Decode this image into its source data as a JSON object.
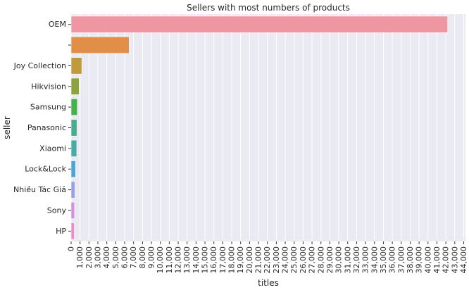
{
  "chart_data": {
    "type": "bar",
    "orientation": "horizontal",
    "title": "Sellers with most numbers of products",
    "xlabel": "titles",
    "ylabel": "seller",
    "categories": [
      "OEM",
      "",
      "Joy Collection",
      "Hikvision",
      "Samsung",
      "Panasonic",
      "Xiaomi",
      "Lock&Lock",
      "Nhiều Tác Giả",
      "Sony",
      "HP"
    ],
    "values": [
      42200,
      6500,
      1200,
      900,
      700,
      650,
      630,
      500,
      420,
      380,
      360
    ],
    "colors": [
      "#ef96a3",
      "#e08e48",
      "#c19a3c",
      "#8ea33d",
      "#44b34b",
      "#47ad8e",
      "#47aba9",
      "#4aa5d9",
      "#9a9ee8",
      "#d98ae3",
      "#ee8bcd"
    ],
    "xlim": [
      0,
      44200
    ],
    "xticks": [
      0,
      1000,
      2000,
      3000,
      4000,
      5000,
      6000,
      7000,
      8000,
      9000,
      10000,
      11000,
      12000,
      13000,
      14000,
      15000,
      16000,
      17000,
      18000,
      19000,
      20000,
      21000,
      22000,
      23000,
      24000,
      25000,
      26000,
      27000,
      28000,
      29000,
      30000,
      31000,
      32000,
      33000,
      34000,
      35000,
      36000,
      37000,
      38000,
      39000,
      40000,
      41000,
      42000,
      43000,
      44000
    ],
    "xtick_labels": [
      "0",
      "1,000",
      "2,000",
      "3,000",
      "4,000",
      "5,000",
      "6,000",
      "7,000",
      "8,000",
      "9,000",
      "10,000",
      "11,000",
      "12,000",
      "13,000",
      "14,000",
      "15,000",
      "16,000",
      "17,000",
      "18,000",
      "19,000",
      "20,000",
      "21,000",
      "22,000",
      "23,000",
      "24,000",
      "25,000",
      "26,000",
      "27,000",
      "28,000",
      "29,000",
      "30,000",
      "31,000",
      "32,000",
      "33,000",
      "34,000",
      "35,000",
      "36,000",
      "37,000",
      "38,000",
      "39,000",
      "40,000",
      "41,000",
      "42,000",
      "43,000",
      "44,000"
    ],
    "grid": true,
    "background": "#eaeaf2"
  }
}
